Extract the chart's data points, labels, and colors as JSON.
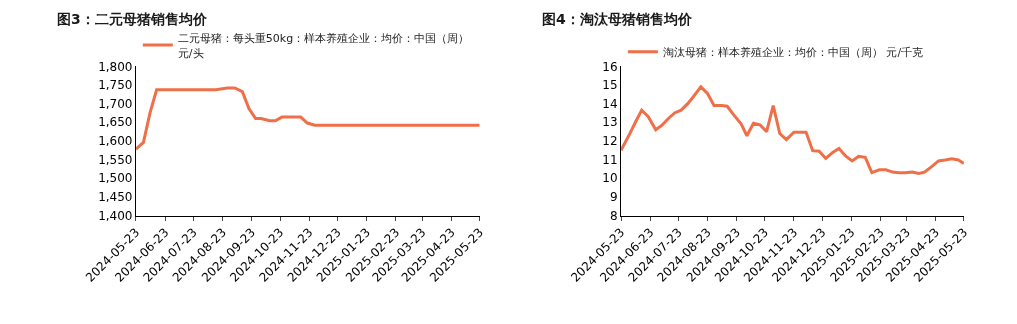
{
  "chart_data": [
    {
      "type": "line",
      "title": "图3：二元母猪销售均价",
      "legend": "top",
      "marker": "none",
      "line_style": "solid",
      "xlim": [
        "2024-05-23",
        "2025-05-23"
      ],
      "xticks": [
        {
          "value": "2024-05-23",
          "label": "2024-05-23"
        },
        {
          "value": "2024-06-23",
          "label": "2024-06-23"
        },
        {
          "value": "2024-07-23",
          "label": "2024-07-23"
        },
        {
          "value": "2024-08-23",
          "label": "2024-08-23"
        },
        {
          "value": "2024-09-23",
          "label": "2024-09-23"
        },
        {
          "value": "2024-10-23",
          "label": "2024-10-23"
        },
        {
          "value": "2024-11-23",
          "label": "2024-11-23"
        },
        {
          "value": "2024-12-23",
          "label": "2024-12-23"
        },
        {
          "value": "2025-01-23",
          "label": "2025-01-23"
        },
        {
          "value": "2025-02-23",
          "label": "2025-02-23"
        },
        {
          "value": "2025-03-23",
          "label": "2025-03-23"
        },
        {
          "value": "2025-04-23",
          "label": "2025-04-23"
        },
        {
          "value": "2025-05-23",
          "label": "2025-05-23"
        }
      ],
      "ylim": [
        1400,
        1800
      ],
      "yticks": [
        {
          "value": 1400,
          "label": "1,400"
        },
        {
          "value": 1450,
          "label": "1,450"
        },
        {
          "value": 1500,
          "label": "1,500"
        },
        {
          "value": 1550,
          "label": "1,550"
        },
        {
          "value": 1600,
          "label": "1,600"
        },
        {
          "value": 1650,
          "label": "1,650"
        },
        {
          "value": 1700,
          "label": "1,700"
        },
        {
          "value": 1750,
          "label": "1,750"
        },
        {
          "value": 1800,
          "label": "1,800"
        }
      ],
      "series": [
        {
          "name": "二元母猪：每头重50kg：样本养殖企业：均价：中国（周）元/头",
          "color": "#ef6f48",
          "x": [
            "2024-05-23",
            "2024-05-31",
            "2024-06-07",
            "2024-06-14",
            "2024-08-16",
            "2024-08-28",
            "2024-09-05",
            "2024-09-13",
            "2024-09-20",
            "2024-09-27",
            "2024-10-03",
            "2024-10-12",
            "2024-10-18",
            "2024-10-25",
            "2024-11-14",
            "2024-11-21",
            "2024-11-29",
            "2025-05-23"
          ],
          "values": [
            1578,
            1596,
            1675,
            1737,
            1737,
            1742,
            1742,
            1732,
            1687,
            1660,
            1660,
            1654,
            1654,
            1664,
            1664,
            1648,
            1642,
            1642
          ]
        }
      ]
    },
    {
      "type": "line",
      "title": "图4：淘汰母猪销售均价",
      "legend": "top",
      "marker": "none",
      "line_style": "solid",
      "xlim": [
        "2024-05-23",
        "2025-05-23"
      ],
      "xticks": [
        {
          "value": "2024-05-23",
          "label": "2024-05-23"
        },
        {
          "value": "2024-06-23",
          "label": "2024-06-23"
        },
        {
          "value": "2024-07-23",
          "label": "2024-07-23"
        },
        {
          "value": "2024-08-23",
          "label": "2024-08-23"
        },
        {
          "value": "2024-09-23",
          "label": "2024-09-23"
        },
        {
          "value": "2024-10-23",
          "label": "2024-10-23"
        },
        {
          "value": "2024-11-23",
          "label": "2024-11-23"
        },
        {
          "value": "2024-12-23",
          "label": "2024-12-23"
        },
        {
          "value": "2025-01-23",
          "label": "2025-01-23"
        },
        {
          "value": "2025-02-23",
          "label": "2025-02-23"
        },
        {
          "value": "2025-03-23",
          "label": "2025-03-23"
        },
        {
          "value": "2025-04-23",
          "label": "2025-04-23"
        },
        {
          "value": "2025-05-23",
          "label": "2025-05-23"
        }
      ],
      "ylim": [
        8,
        16
      ],
      "yticks": [
        8,
        9,
        10,
        11,
        12,
        13,
        14,
        15,
        16
      ],
      "series": [
        {
          "name": "淘汰母猪：样本养殖企业：均价：中国（周） 元/千克",
          "color": "#ef6f48",
          "x": [
            "2024-05-23",
            "2024-06-01",
            "2024-06-08",
            "2024-06-14",
            "2024-06-21",
            "2024-06-29",
            "2024-07-06",
            "2024-07-13",
            "2024-07-19",
            "2024-07-26",
            "2024-08-02",
            "2024-08-08",
            "2024-08-16",
            "2024-08-23",
            "2024-08-30",
            "2024-09-07",
            "2024-09-13",
            "2024-09-20",
            "2024-09-28",
            "2024-10-04",
            "2024-10-11",
            "2024-10-18",
            "2024-10-25",
            "2024-11-01",
            "2024-11-08",
            "2024-11-15",
            "2024-11-23",
            "2024-12-06",
            "2024-12-13",
            "2024-12-20",
            "2024-12-27",
            "2025-01-03",
            "2025-01-10",
            "2025-01-17",
            "2025-01-24",
            "2025-01-31",
            "2025-02-07",
            "2025-02-14",
            "2025-02-22",
            "2025-03-01",
            "2025-03-08",
            "2025-03-15",
            "2025-03-22",
            "2025-03-29",
            "2025-04-05",
            "2025-04-11",
            "2025-04-18",
            "2025-04-26",
            "2025-05-03",
            "2025-05-10",
            "2025-05-17",
            "2025-05-23"
          ],
          "values": [
            11.5,
            12.35,
            13.07,
            13.65,
            13.3,
            12.6,
            12.86,
            13.23,
            13.5,
            13.65,
            14.0,
            14.37,
            14.9,
            14.55,
            13.9,
            13.9,
            13.86,
            13.4,
            12.9,
            12.28,
            12.95,
            12.86,
            12.5,
            13.9,
            12.4,
            12.07,
            12.47,
            12.47,
            11.48,
            11.45,
            11.06,
            11.37,
            11.6,
            11.2,
            10.93,
            11.17,
            11.12,
            10.3,
            10.45,
            10.45,
            10.33,
            10.3,
            10.3,
            10.33,
            10.26,
            10.33,
            10.6,
            10.93,
            10.98,
            11.04,
            10.98,
            10.8
          ]
        }
      ]
    }
  ]
}
